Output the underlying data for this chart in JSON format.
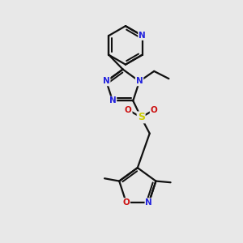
{
  "bg_color": "#e8e8e8",
  "bond_color": "#111111",
  "n_color": "#2222dd",
  "o_color": "#cc1111",
  "s_color": "#cccc00",
  "lw": 1.6,
  "fs": 7.5,
  "xlim": [
    0,
    6
  ],
  "ylim": [
    0,
    9
  ]
}
